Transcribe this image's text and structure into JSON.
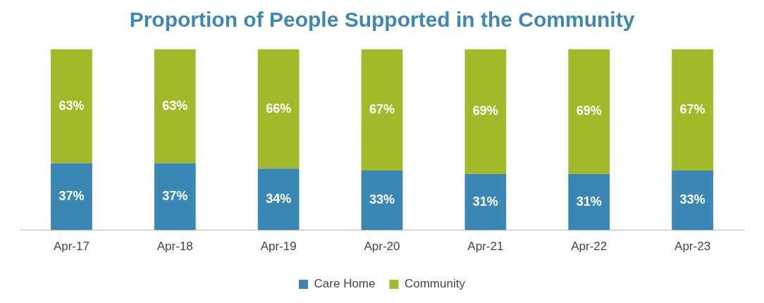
{
  "chart_data": {
    "type": "bar",
    "title": "Proportion of People Supported in the Community",
    "categories": [
      "Apr-17",
      "Apr-18",
      "Apr-19",
      "Apr-20",
      "Apr-21",
      "Apr-22",
      "Apr-23"
    ],
    "stacked": true,
    "legend": "bottom",
    "grid": false,
    "series": [
      {
        "name": "Care Home",
        "color": "#3a87b5",
        "values": [
          37,
          37,
          34,
          33,
          31,
          31,
          33
        ],
        "value_labels": [
          "37%",
          "37%",
          "34%",
          "33%",
          "31%",
          "31%",
          "33%"
        ]
      },
      {
        "name": "Community",
        "color": "#a3b92a",
        "values": [
          63,
          63,
          66,
          67,
          69,
          69,
          67
        ],
        "value_labels": [
          "63%",
          "63%",
          "66%",
          "67%",
          "69%",
          "69%",
          "67%"
        ]
      }
    ]
  }
}
